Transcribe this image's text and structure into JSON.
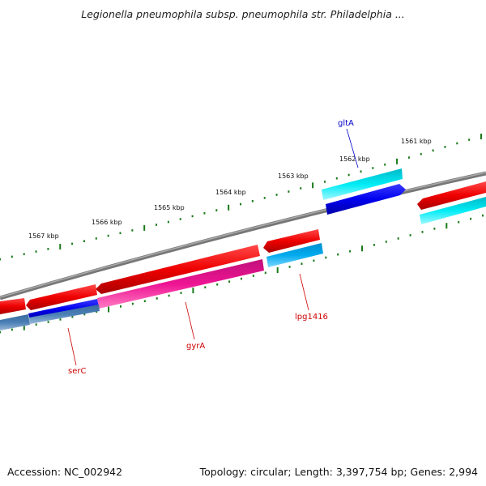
{
  "title": "Legionella pneumophila subsp. pneumophila str. Philadelphia ...",
  "footer": {
    "accession": "Accession: NC_002942",
    "summary": "Topology: circular; Length: 3,397,754 bp; Genes: 2,994"
  },
  "ticks": {
    "labels": [
      "1561 kbp",
      "1562 kbp",
      "1563 kbp",
      "1564 kbp",
      "1565 kbp",
      "1566 kbp",
      "1567 kbp"
    ],
    "color": "#1a7a1a"
  },
  "genes": [
    {
      "label": "gltA",
      "color": "#0000cc"
    },
    {
      "label": "lpg1416",
      "color": "#cc0000"
    },
    {
      "label": "gyrA",
      "color": "#cc0000"
    },
    {
      "label": "serC",
      "color": "#cc0000"
    }
  ],
  "feature_colors": {
    "red": "#ee0000",
    "cyan": "#00e5ee",
    "blue": "#0000ee",
    "sky_blue": "#00aaee",
    "pink": "#ee1493",
    "steel_blue": "#4a7fb5",
    "backbone": "#888888"
  }
}
